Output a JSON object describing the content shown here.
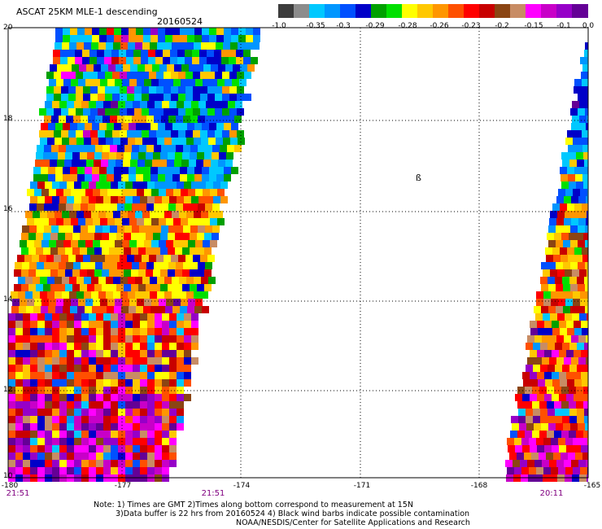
{
  "header": {
    "title": "ASCAT 25KM MLE-1 descending",
    "date": "20160524"
  },
  "colorbar": {
    "colors": [
      "#3c3c3c",
      "#8c8c8c",
      "#00c8ff",
      "#0096ff",
      "#0050ff",
      "#0000c8",
      "#00a000",
      "#00e000",
      "#ffff00",
      "#ffc800",
      "#ff9600",
      "#ff5000",
      "#ff0000",
      "#c80000",
      "#8b4513",
      "#c88c64",
      "#ff00ff",
      "#c800c8",
      "#9600c8",
      "#640096"
    ],
    "labels": [
      "-1.0",
      "-0.35",
      "-0.3",
      "-0.29",
      "-0.28",
      "-0.26",
      "-0.23",
      "-0.2",
      "-0.15",
      "-0.1",
      "0.0"
    ]
  },
  "map": {
    "y_ticks": [
      "20",
      "18",
      "16",
      "14",
      "12",
      "10"
    ],
    "x_ticks": [
      "-180",
      "-177",
      "-174",
      "-171",
      "-168",
      "-165"
    ],
    "time_labels": [
      "21:51",
      "21:51",
      "20:11"
    ],
    "barb_symbol": "ß"
  },
  "notes": {
    "line1": "Note: 1) Times are GMT 2)Times along bottom correspond to measurement at 15N",
    "line2": "3)Data buffer is 22 hrs from 20160524 4) Black wind barbs indicate possible contamination",
    "line3": "NOAA/NESDIS/Center for Satellite Applications and Research"
  }
}
